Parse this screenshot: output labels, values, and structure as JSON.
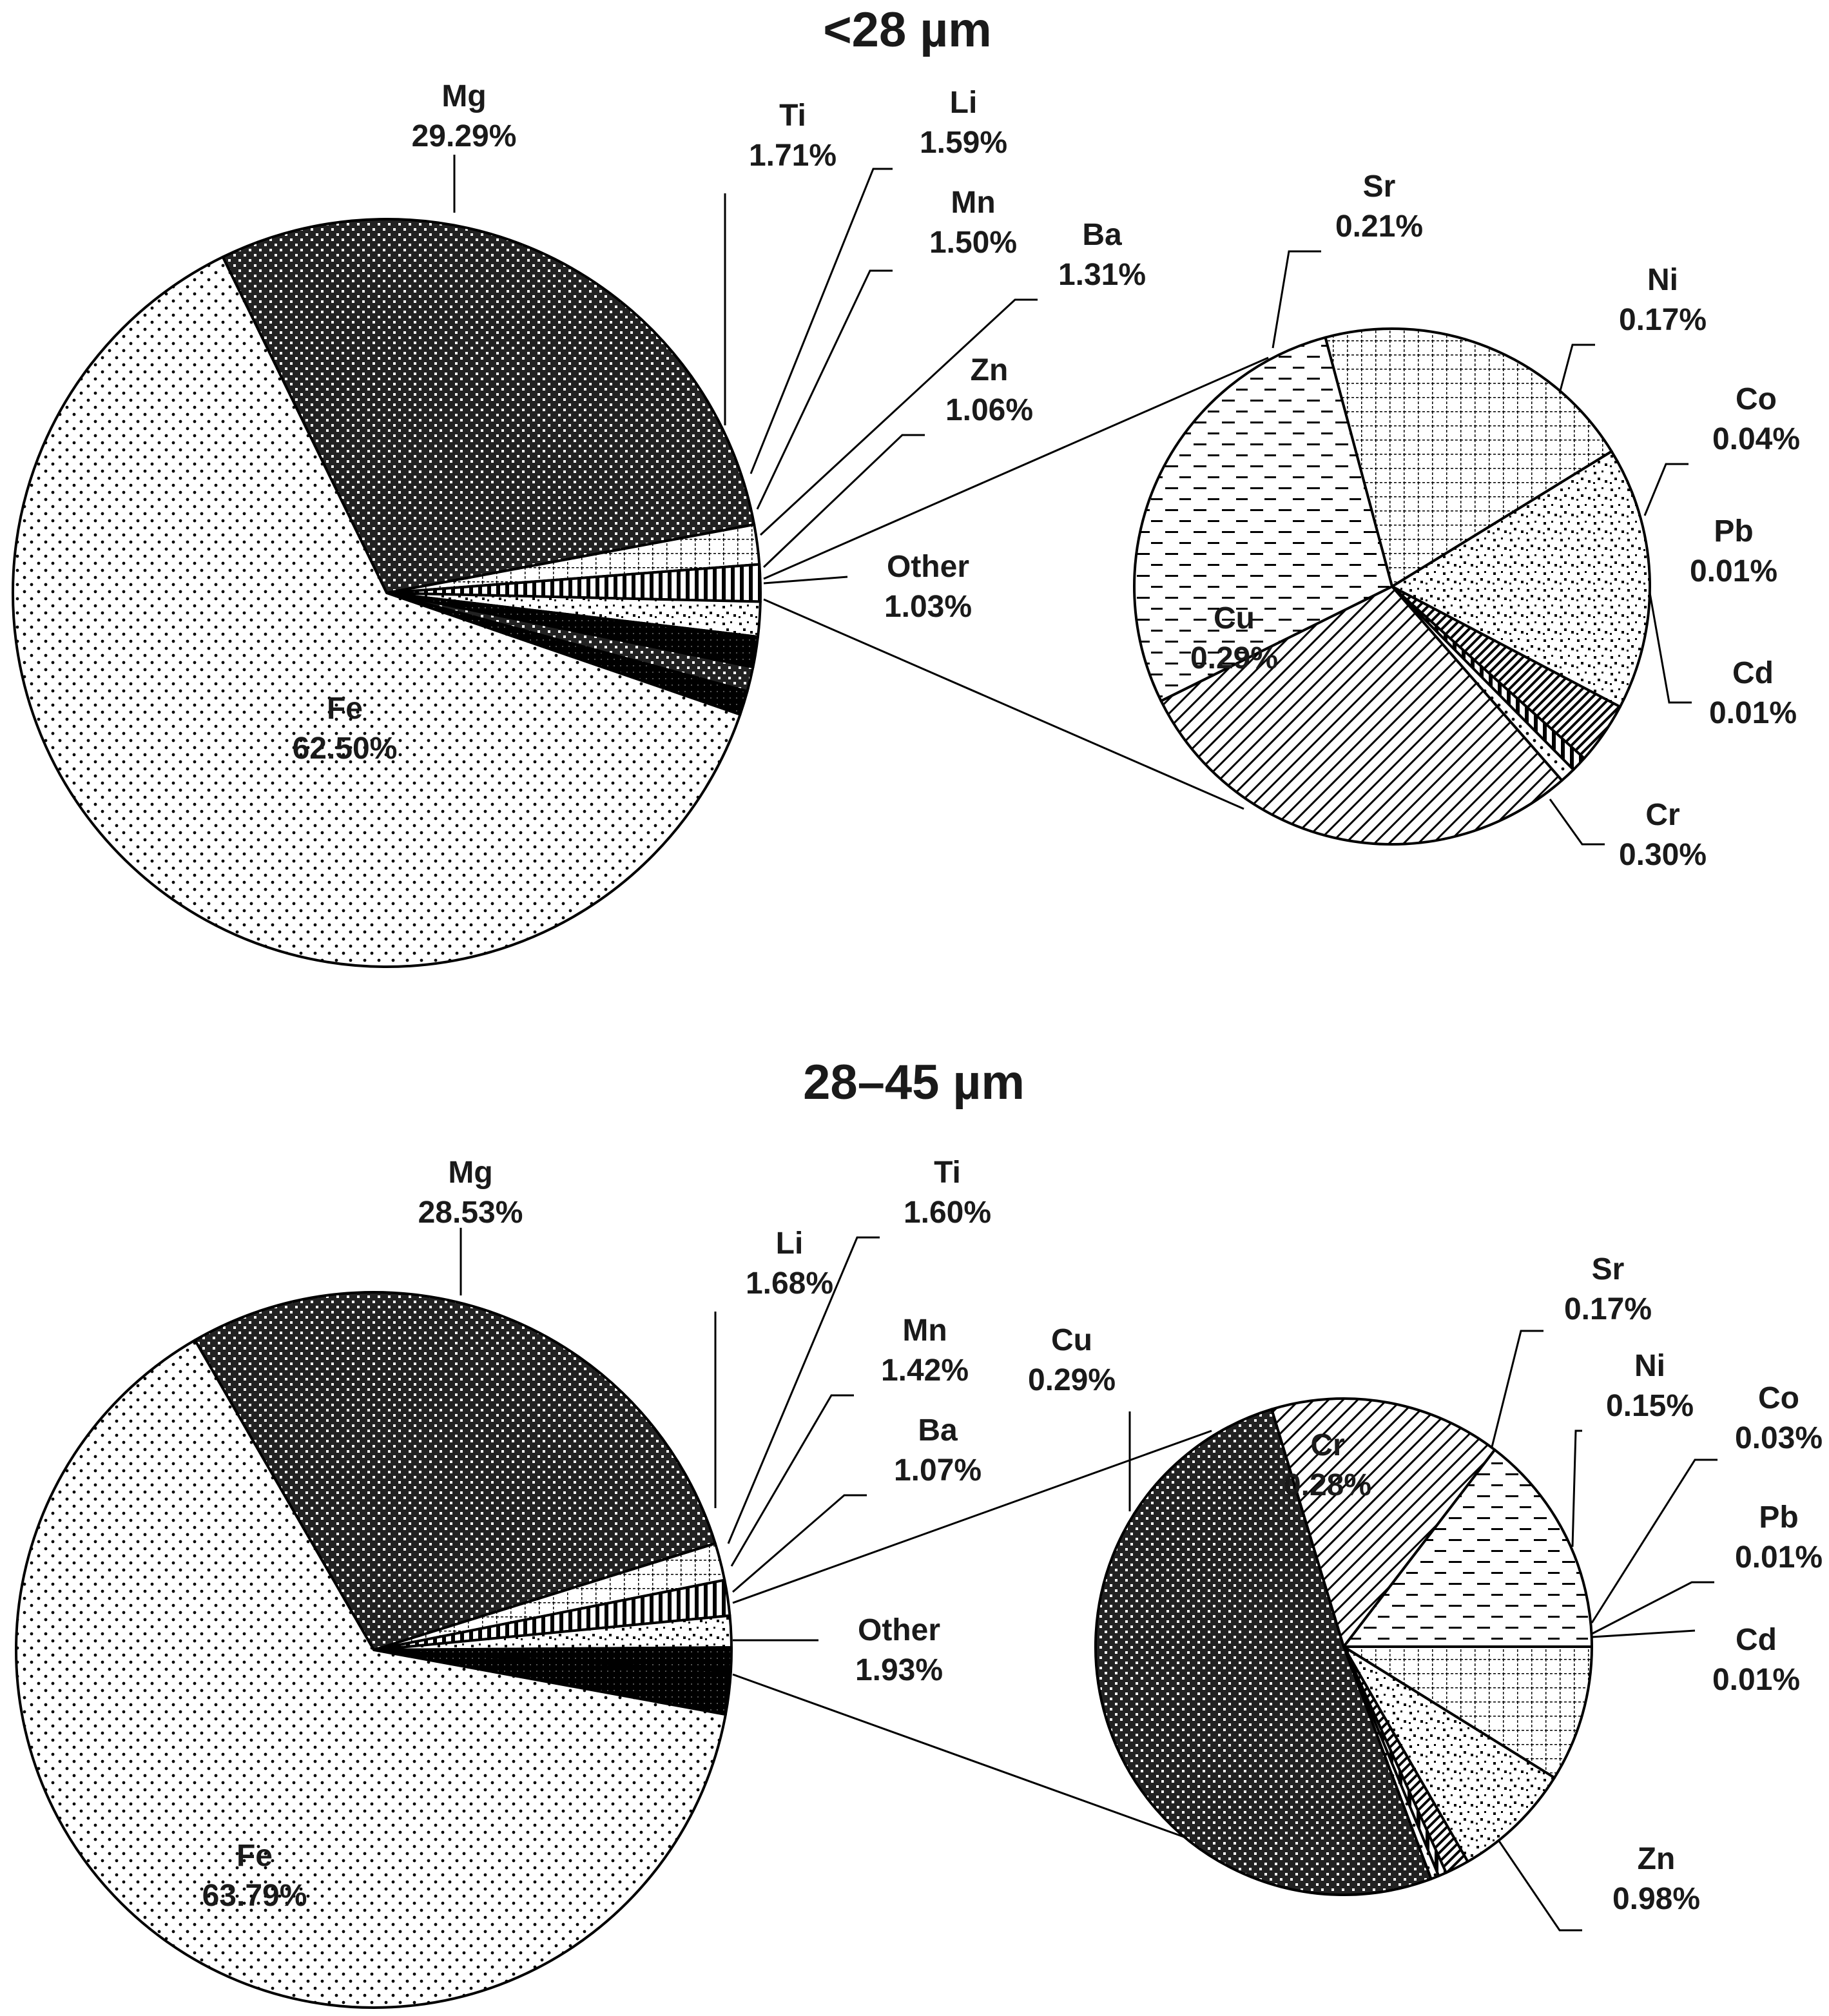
{
  "figure": {
    "background": "#ffffff",
    "stroke": "#000000"
  },
  "chart_data": [
    {
      "type": "pie",
      "title": "<28 µm",
      "slices": [
        {
          "label": "Mg",
          "value": 29.29,
          "value_label": "29.29%",
          "pattern": "dense"
        },
        {
          "label": "Ti",
          "value": 1.71,
          "value_label": "1.71%",
          "pattern": "grid"
        },
        {
          "label": "Li",
          "value": 1.59,
          "value_label": "1.59%",
          "pattern": "vlines"
        },
        {
          "label": "Mn",
          "value": 1.5,
          "value_label": "1.50%",
          "pattern": "speckle"
        },
        {
          "label": "Ba",
          "value": 1.31,
          "value_label": "1.31%",
          "pattern": "black"
        },
        {
          "label": "Zn",
          "value": 1.06,
          "value_label": "1.06%",
          "pattern": "dense"
        },
        {
          "label": "Other",
          "value": 1.03,
          "value_label": "1.03%",
          "pattern": "black"
        },
        {
          "label": "Fe",
          "value": 62.5,
          "value_label": "62.50%",
          "pattern": "dots"
        }
      ],
      "breakout": {
        "of": "Other",
        "slices": [
          {
            "label": "Sr",
            "value": 0.21,
            "value_label": "0.21%",
            "pattern": "grid"
          },
          {
            "label": "Ni",
            "value": 0.17,
            "value_label": "0.17%",
            "pattern": "speckle"
          },
          {
            "label": "Co",
            "value": 0.04,
            "value_label": "0.04%",
            "pattern": "diag_dense"
          },
          {
            "label": "Pb",
            "value": 0.01,
            "value_label": "0.01%",
            "pattern": "vlines"
          },
          {
            "label": "Cd",
            "value": 0.01,
            "value_label": "0.01%",
            "pattern": "dots"
          },
          {
            "label": "Cr",
            "value": 0.3,
            "value_label": "0.30%",
            "pattern": "diag"
          },
          {
            "label": "Cu",
            "value": 0.29,
            "value_label": "0.29%",
            "pattern": "dashes"
          }
        ]
      }
    },
    {
      "type": "pie",
      "title": "28–45 µm",
      "slices": [
        {
          "label": "Mg",
          "value": 28.53,
          "value_label": "28.53%",
          "pattern": "dense"
        },
        {
          "label": "Li",
          "value": 1.68,
          "value_label": "1.68%",
          "pattern": "grid"
        },
        {
          "label": "Ti",
          "value": 1.6,
          "value_label": "1.60%",
          "pattern": "vlines"
        },
        {
          "label": "Mn",
          "value": 1.42,
          "value_label": "1.42%",
          "pattern": "speckle"
        },
        {
          "label": "Ba",
          "value": 1.07,
          "value_label": "1.07%",
          "pattern": "black"
        },
        {
          "label": "Other",
          "value": 1.93,
          "value_label": "1.93%",
          "pattern": "black"
        },
        {
          "label": "Fe",
          "value": 63.79,
          "value_label": "63.79%",
          "pattern": "dots"
        }
      ],
      "breakout": {
        "of": "Other",
        "slices": [
          {
            "label": "Sr",
            "value": 0.17,
            "value_label": "0.17%",
            "pattern": "grid"
          },
          {
            "label": "Ni",
            "value": 0.15,
            "value_label": "0.15%",
            "pattern": "speckle"
          },
          {
            "label": "Co",
            "value": 0.03,
            "value_label": "0.03%",
            "pattern": "diag_dense"
          },
          {
            "label": "Pb",
            "value": 0.01,
            "value_label": "0.01%",
            "pattern": "vlines"
          },
          {
            "label": "Cd",
            "value": 0.01,
            "value_label": "0.01%",
            "pattern": "dots"
          },
          {
            "label": "Zn",
            "value": 0.98,
            "value_label": "0.98%",
            "pattern": "dense"
          },
          {
            "label": "Cu",
            "value": 0.29,
            "value_label": "0.29%",
            "pattern": "diag"
          },
          {
            "label": "Cr",
            "value": 0.28,
            "value_label": "0.28%",
            "pattern": "dashes"
          }
        ]
      }
    }
  ]
}
